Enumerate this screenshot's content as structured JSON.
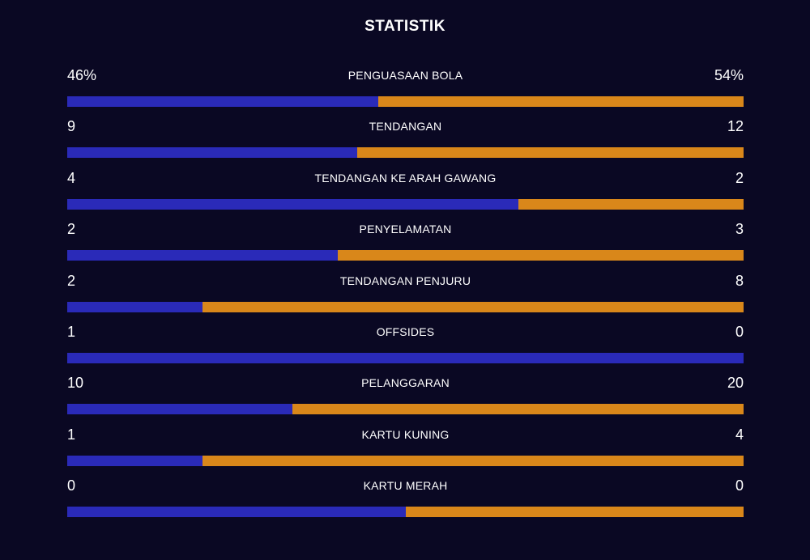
{
  "title": "STATISTIK",
  "colors": {
    "home": "#2a2ab8",
    "away": "#d9871a",
    "background": "#0a0823"
  },
  "stats": [
    {
      "label": "PENGUASAAN BOLA",
      "home": "46%",
      "away": "54%",
      "home_share": 0.46
    },
    {
      "label": "TENDANGAN",
      "home": "9",
      "away": "12",
      "home_share": 0.4286
    },
    {
      "label": "TENDANGAN KE ARAH GAWANG",
      "home": "4",
      "away": "2",
      "home_share": 0.6667
    },
    {
      "label": "PENYELAMATAN",
      "home": "2",
      "away": "3",
      "home_share": 0.4
    },
    {
      "label": "TENDANGAN PENJURU",
      "home": "2",
      "away": "8",
      "home_share": 0.2
    },
    {
      "label": "OFFSIDES",
      "home": "1",
      "away": "0",
      "home_share": 1.0
    },
    {
      "label": "PELANGGARAN",
      "home": "10",
      "away": "20",
      "home_share": 0.3333
    },
    {
      "label": "KARTU KUNING",
      "home": "1",
      "away": "4",
      "home_share": 0.2
    },
    {
      "label": "KARTU MERAH",
      "home": "0",
      "away": "0",
      "home_share": 0.5
    }
  ]
}
